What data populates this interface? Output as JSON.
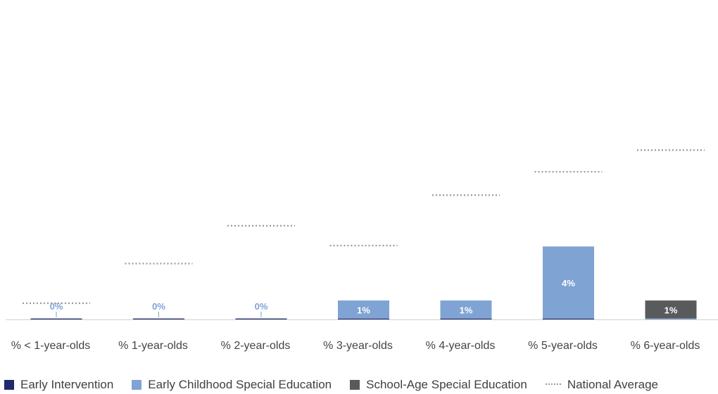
{
  "chart_data": {
    "type": "bar",
    "title": "",
    "xlabel": "",
    "ylabel": "",
    "ylim": [
      0,
      10
    ],
    "grid": false,
    "legend_position": "bottom",
    "categories": [
      "% < 1-year-olds",
      "% 1-year-olds",
      "% 2-year-olds",
      "% 3-year-olds",
      "% 4-year-olds",
      "% 5-year-olds",
      "% 6-year-olds"
    ],
    "series": [
      {
        "name": "Early Intervention",
        "color": "#1f2a6b",
        "values": [
          0.05,
          0.05,
          0.05,
          0.05,
          0.05,
          0.05,
          0.0
        ]
      },
      {
        "name": "Early Childhood Special Education",
        "color": "#7fa3d3",
        "values": [
          0.0,
          0.0,
          0.0,
          1.0,
          1.0,
          4.0,
          0.05
        ]
      },
      {
        "name": "School-Age Special Education",
        "color": "#595a5c",
        "values": [
          0.0,
          0.0,
          0.0,
          0.0,
          0.0,
          0.0,
          1.0
        ]
      }
    ],
    "national_average": {
      "name": "National Average",
      "color": "#9a9a9a",
      "values": [
        0.9,
        3.1,
        5.2,
        4.1,
        6.9,
        8.2,
        9.4
      ]
    },
    "data_labels": [
      "0%",
      "0%",
      "0%",
      "1%",
      "1%",
      "4%",
      "1%"
    ]
  }
}
